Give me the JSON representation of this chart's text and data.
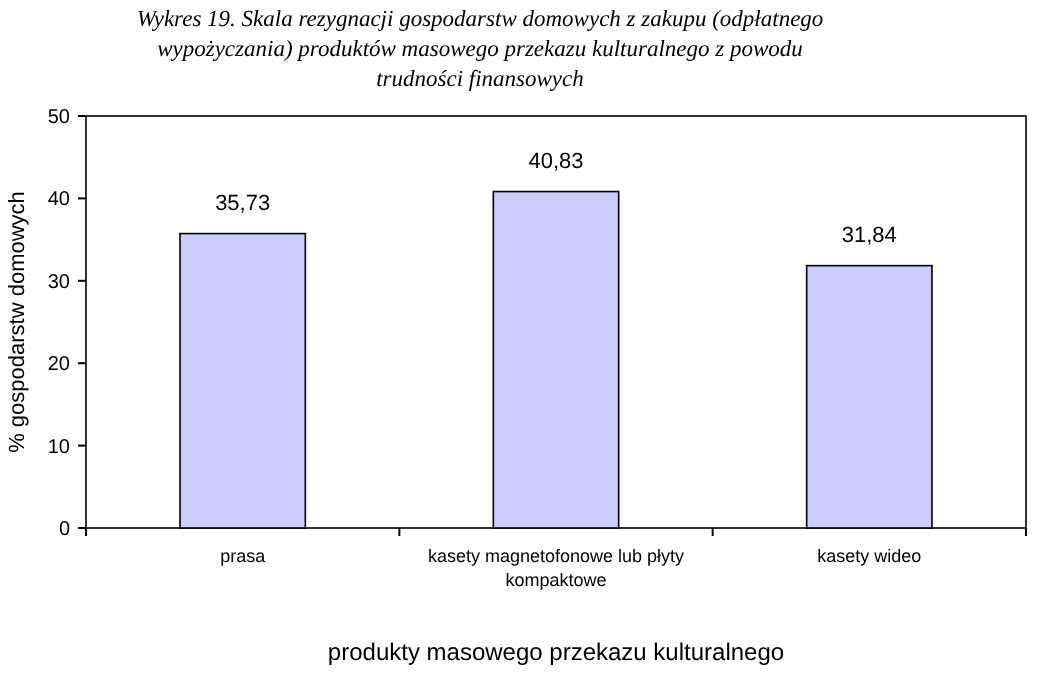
{
  "chart_data": {
    "type": "bar",
    "title": "Wykres 19. Skala rezygnacji gospodarstw domowych z zakupu (odpłatnego wypożyczania) produktów masowego przekazu kulturalnego z powodu trudności finansowych",
    "xlabel": "produkty masowego przekazu kulturalnego",
    "ylabel": "% gospodarstw domowych",
    "categories": [
      "prasa",
      "kasety magnetofonowe lub płyty kompaktowe",
      "kasety wideo"
    ],
    "values": [
      35.73,
      40.83,
      31.84
    ],
    "value_labels": [
      "35,73",
      "40,83",
      "31,84"
    ],
    "color": "#ccccff",
    "ylim": [
      0,
      50
    ],
    "yticks": [
      0,
      10,
      20,
      30,
      40,
      50
    ],
    "grid": false
  }
}
